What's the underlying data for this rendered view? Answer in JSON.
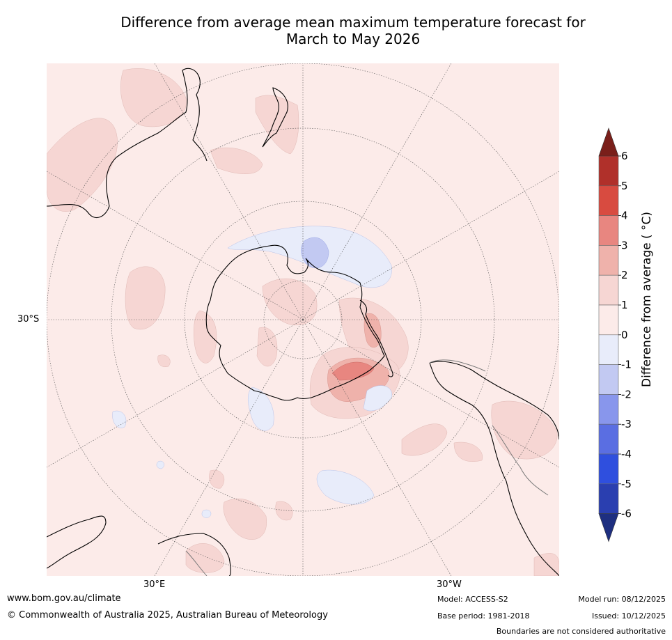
{
  "title_line1": "Difference from average mean maximum temperature forecast for",
  "title_line2": "March to May 2026",
  "axis_labels": {
    "lat": "30°S",
    "lon_left": "30°E",
    "lon_right": "30°W"
  },
  "colorbar": {
    "label": "Difference from average ( °C)",
    "ticks": [
      "6",
      "5",
      "4",
      "3",
      "2",
      "1",
      "0",
      "-1",
      "-2",
      "-3",
      "-4",
      "-5",
      "-6"
    ],
    "colors_warm": [
      "#7a1f1a",
      "#b0302a",
      "#d84b40",
      "#e88680",
      "#efb2ab",
      "#f6d6d3",
      "#fcebe9"
    ],
    "colors_cool": [
      "#e8ecfa",
      "#c2c9f2",
      "#8896ec",
      "#5a6ee2",
      "#2f4fde",
      "#2a3fb0",
      "#1e2f80"
    ]
  },
  "footer": {
    "website": "www.bom.gov.au/climate",
    "copyright": "© Commonwealth of Australia 2025, Australian Bureau of Meteorology",
    "model": "Model: ACCESS-S2",
    "base_period": "Base period: 1981-2018",
    "model_run": "Model run: 08/12/2025",
    "issued": "Issued: 10/12/2025",
    "disclaimer": "Boundaries are not considered authoritative"
  },
  "colors": {
    "background": "#fcebe9",
    "warm1": "#f6d6d3",
    "warm2": "#efb2ab",
    "warm3": "#e88680",
    "cool1": "#e8ecfa",
    "cool2": "#c2c9f2"
  }
}
